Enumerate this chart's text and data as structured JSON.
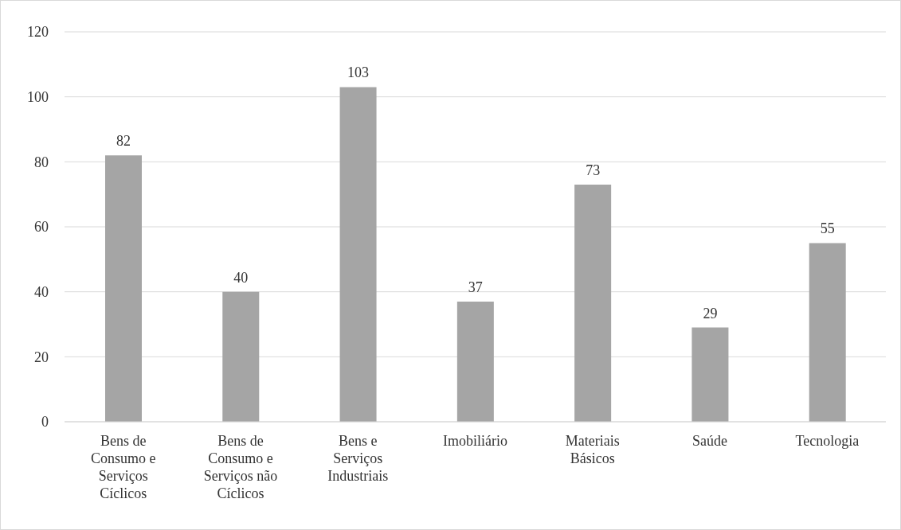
{
  "chart_data": {
    "type": "bar",
    "categories": [
      "Bens de Consumo e Serviços Cíclicos",
      "Bens de Consumo e Serviços não Cíclicos",
      "Bens e Serviços Industriais",
      "Imobiliário",
      "Materiais Básicos",
      "Saúde",
      "Tecnologia"
    ],
    "values": [
      82,
      40,
      103,
      37,
      73,
      29,
      55
    ],
    "color": "#a5a5a5",
    "ylim": [
      0,
      120
    ],
    "yticks": [
      0,
      20,
      40,
      60,
      80,
      100,
      120
    ],
    "grid": "y",
    "data_labels": true
  }
}
